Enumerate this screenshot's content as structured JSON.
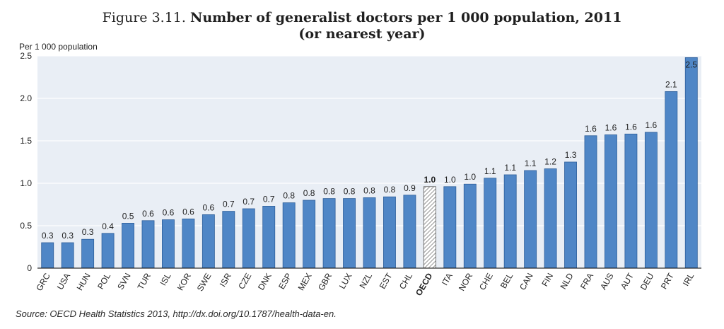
{
  "chart_data": {
    "type": "bar",
    "title_prefix": "Figure 3.11.",
    "title": "Number of generalist doctors per 1 000 population, 2011",
    "title_line2": "(or nearest year)",
    "ylabel": "Per 1 000 population",
    "xlabel": "",
    "ylim": [
      0,
      2.5
    ],
    "yticks": [
      "0",
      "0.5",
      "1.0",
      "1.5",
      "2.0",
      "2.5"
    ],
    "grid": true,
    "categories": [
      "GRC",
      "USA",
      "HUN",
      "POL",
      "SVN",
      "TUR",
      "ISL",
      "KOR",
      "SWE",
      "ISR",
      "CZE",
      "DNK",
      "ESP",
      "MEX",
      "GBR",
      "LUX",
      "NZL",
      "EST",
      "CHL",
      "OECD",
      "ITA",
      "NOR",
      "CHE",
      "BEL",
      "CAN",
      "FIN",
      "NLD",
      "FRA",
      "AUS",
      "AUT",
      "DEU",
      "PRT",
      "IRL"
    ],
    "values": [
      0.3,
      0.3,
      0.34,
      0.41,
      0.53,
      0.56,
      0.57,
      0.58,
      0.63,
      0.67,
      0.7,
      0.73,
      0.77,
      0.8,
      0.82,
      0.82,
      0.83,
      0.84,
      0.86,
      0.96,
      0.96,
      0.99,
      1.06,
      1.1,
      1.15,
      1.17,
      1.25,
      1.56,
      1.57,
      1.58,
      1.6,
      2.08,
      2.48
    ],
    "labels": [
      "0.3",
      "0.3",
      "0.3",
      "0.4",
      "0.5",
      "0.6",
      "0.6",
      "0.6",
      "0.6",
      "0.7",
      "0.7",
      "0.7",
      "0.8",
      "0.8",
      "0.8",
      "0.8",
      "0.8",
      "0.8",
      "0.9",
      "1.0",
      "1.0",
      "1.0",
      "1.1",
      "1.1",
      "1.1",
      "1.2",
      "1.3",
      "1.6",
      "1.6",
      "1.6",
      "1.6",
      "2.1",
      "2.5"
    ],
    "highlight": "OECD",
    "bar_color": "#4f86c6",
    "bar_edge": "#2e5f9a",
    "highlight_color": "#8c8c8c"
  },
  "source": "Source: OECD Health Statistics 2013, http://dx.doi.org/10.1787/health-data-en."
}
